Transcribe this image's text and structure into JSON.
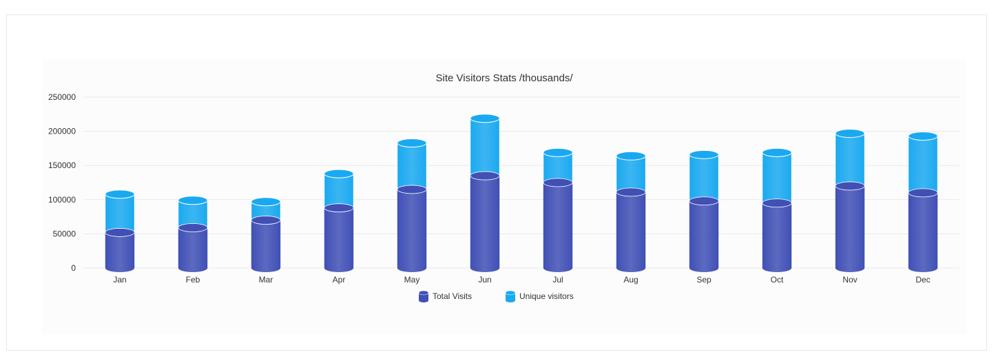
{
  "colors": {
    "total_visits": "#4050b5",
    "unique_visitors": "#1aa9f0",
    "grid": "#e8e8e8",
    "text": "#333333"
  },
  "chart_data": {
    "type": "bar",
    "stacked": true,
    "style": "3d-cylinder",
    "title": "Site Visitors Stats /thousands/",
    "categories": [
      "Jan",
      "Feb",
      "Mar",
      "Apr",
      "May",
      "Jun",
      "Jul",
      "Aug",
      "Sep",
      "Oct",
      "Nov",
      "Dec"
    ],
    "series": [
      {
        "name": "Total Visits",
        "values": [
          52000,
          59000,
          70000,
          88000,
          115000,
          135000,
          125000,
          111000,
          98000,
          95000,
          120000,
          110000
        ]
      },
      {
        "name": "Unique visitors",
        "values": [
          56000,
          40000,
          27000,
          50000,
          68000,
          84000,
          44000,
          53000,
          68000,
          74000,
          77000,
          83000
        ]
      }
    ],
    "ylim": [
      0,
      250000
    ],
    "yticks": [
      "0",
      "50000",
      "100000",
      "150000",
      "200000",
      "250000"
    ],
    "grid": true,
    "legend_position": "bottom-center"
  }
}
